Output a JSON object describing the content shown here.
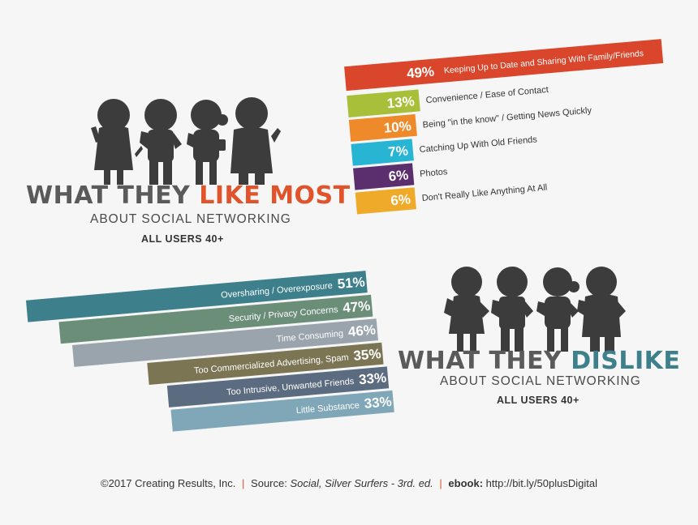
{
  "like": {
    "title_a": "WHAT THEY ",
    "title_b": "LIKE MOST",
    "subtitle": "ABOUT SOCIAL NETWORKING",
    "audience": "ALL USERS 40+",
    "accent": "#e0532b"
  },
  "dislike": {
    "title_a": "WHAT THEY ",
    "title_b": "DISLIKE",
    "subtitle": "ABOUT SOCIAL NETWORKING",
    "audience": "ALL USERS 40+",
    "accent": "#3e7f8c"
  },
  "footer": {
    "copyright": "©2017 Creating Results, Inc.",
    "sep": "|",
    "source_label": "Source:",
    "source_title": "Social, Silver Surfers - 3rd. ed.",
    "ebook_label": "ebook:",
    "ebook_url": "http://bit.ly/50plusDigital"
  },
  "chart_data": [
    {
      "type": "bar",
      "categories": [
        "Keeping Up to Date and Sharing With Family/Friends",
        "Convenience / Ease of Contact",
        "Being \"in the know\" / Getting News Quickly",
        "Catching Up With Old Friends",
        "Photos",
        "Don't Really Like Anything At All"
      ],
      "values": [
        49,
        13,
        10,
        7,
        6,
        6
      ],
      "value_labels": [
        "49%",
        "13%",
        "10%",
        "7%",
        "6%",
        "6%"
      ],
      "colors": [
        "#d9462b",
        "#a8bf3a",
        "#ef8a2a",
        "#28b5d4",
        "#5b2f6e",
        "#f0aa2a"
      ],
      "title": "WHAT THEY LIKE MOST"
    },
    {
      "type": "bar",
      "categories": [
        "Oversharing / Overexposure",
        "Security / Privacy Concerns",
        "Time Consuming",
        "Too Commercialized Advertising, Spam",
        "Too Intrusive, Unwanted Friends",
        "Little Substance"
      ],
      "values": [
        51,
        47,
        46,
        35,
        33,
        33
      ],
      "value_labels": [
        "51%",
        "47%",
        "46%",
        "35%",
        "33%",
        "33%"
      ],
      "colors": [
        "#3e7f8c",
        "#6b8e79",
        "#9aa4ac",
        "#7b7554",
        "#5c6c80",
        "#7fa7b8"
      ],
      "title": "WHAT THEY DISLIKE"
    }
  ]
}
